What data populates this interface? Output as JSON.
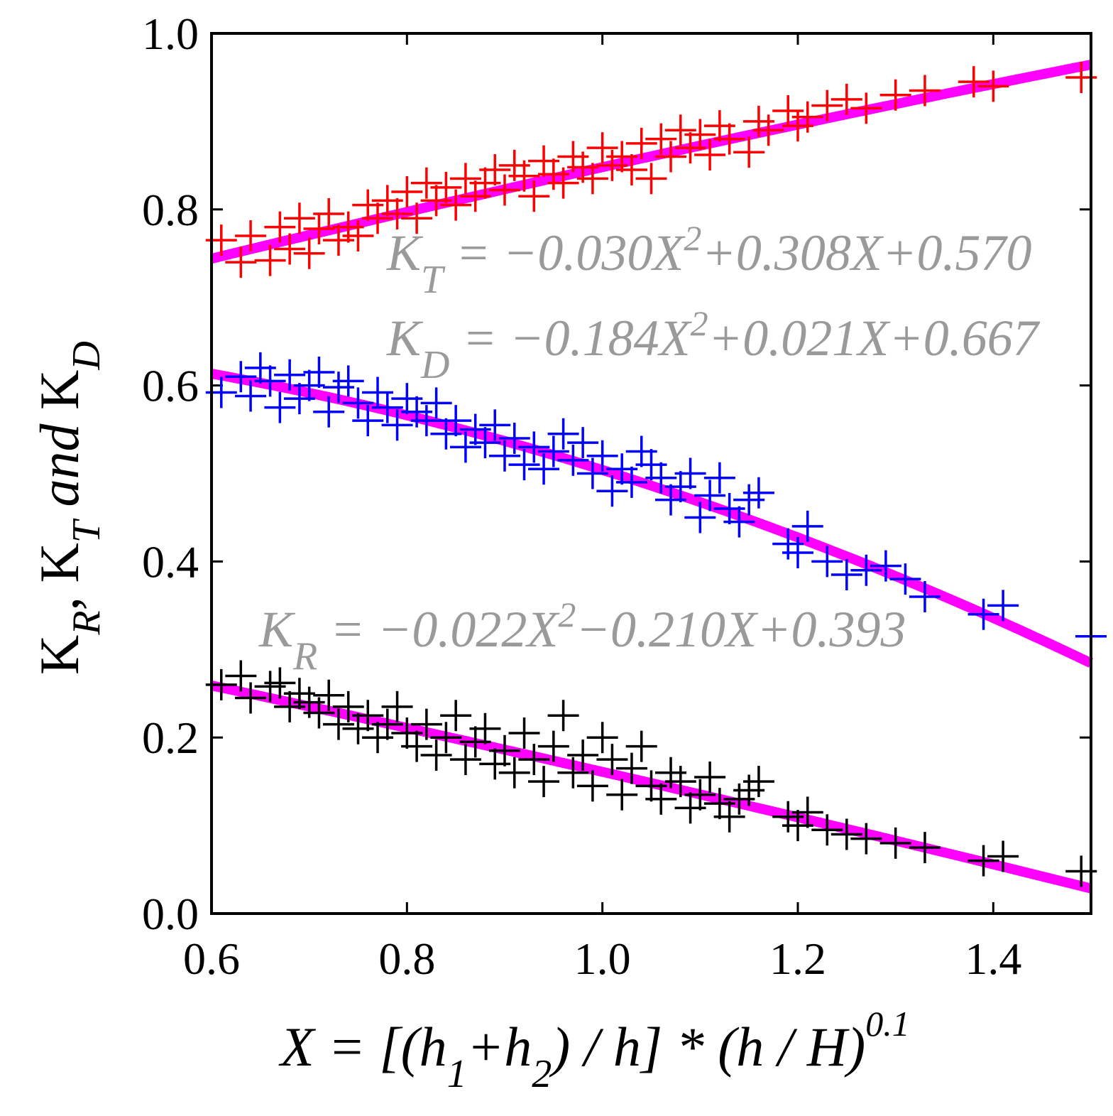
{
  "chart_data": {
    "type": "scatter",
    "title": "",
    "xlim": [
      0.6,
      1.5
    ],
    "ylim": [
      0.0,
      1.0
    ],
    "x_ticks": [
      "0.6",
      "0.8",
      "1.0",
      "1.2",
      "1.4"
    ],
    "y_ticks": [
      "0.0",
      "0.2",
      "0.4",
      "0.6",
      "0.8",
      "1.0"
    ],
    "xlabel": {
      "lhs": "X = [(h",
      "sub1": "1",
      "mid1": "+h",
      "sub2": "2",
      "mid2": ") / h] * (h / H)",
      "sup": "0.1"
    },
    "ylabel": {
      "k1": "K",
      "s1": "R",
      "sep1": ", K",
      "s2": "T",
      "and": " and ",
      "k3": "K",
      "s3": "D"
    },
    "equations": [
      {
        "k": "K",
        "sub": "T",
        "p1": " = −0.030X",
        "sup": "2",
        "p2": "+0.308X+0.570"
      },
      {
        "k": "K",
        "sub": "D",
        "p1": " = −0.184X",
        "sup": "2",
        "p2": "+0.021X+0.667"
      },
      {
        "k": "K",
        "sub": "R",
        "p1": " = −0.022X",
        "sup": "2",
        "p2": "−0.210X+0.393"
      }
    ],
    "fit_color": "#ff00ff",
    "series": [
      {
        "name": "K_T",
        "color": "#ff0000",
        "coef": [
          -0.03,
          0.308,
          0.57
        ],
        "x": [
          0.61,
          0.63,
          0.64,
          0.66,
          0.67,
          0.68,
          0.69,
          0.7,
          0.71,
          0.72,
          0.73,
          0.74,
          0.75,
          0.76,
          0.77,
          0.78,
          0.79,
          0.8,
          0.81,
          0.82,
          0.83,
          0.84,
          0.85,
          0.86,
          0.87,
          0.88,
          0.89,
          0.9,
          0.91,
          0.92,
          0.93,
          0.94,
          0.95,
          0.96,
          0.97,
          0.98,
          0.99,
          1.0,
          1.01,
          1.02,
          1.03,
          1.04,
          1.05,
          1.06,
          1.07,
          1.08,
          1.09,
          1.1,
          1.11,
          1.12,
          1.13,
          1.15,
          1.16,
          1.17,
          1.19,
          1.2,
          1.21,
          1.23,
          1.25,
          1.27,
          1.3,
          1.33,
          1.38,
          1.4,
          1.49
        ],
        "y": [
          0.765,
          0.74,
          0.77,
          0.742,
          0.78,
          0.755,
          0.79,
          0.75,
          0.778,
          0.795,
          0.765,
          0.78,
          0.77,
          0.805,
          0.79,
          0.81,
          0.795,
          0.82,
          0.79,
          0.83,
          0.81,
          0.825,
          0.805,
          0.835,
          0.815,
          0.83,
          0.845,
          0.822,
          0.85,
          0.838,
          0.815,
          0.855,
          0.84,
          0.83,
          0.86,
          0.848,
          0.835,
          0.87,
          0.85,
          0.86,
          0.845,
          0.875,
          0.835,
          0.88,
          0.86,
          0.89,
          0.87,
          0.885,
          0.862,
          0.895,
          0.88,
          0.865,
          0.9,
          0.89,
          0.912,
          0.895,
          0.905,
          0.918,
          0.925,
          0.915,
          0.93,
          0.935,
          0.945,
          0.94,
          0.95
        ]
      },
      {
        "name": "K_D",
        "color": "#0000ff",
        "coef": [
          -0.184,
          0.021,
          0.667
        ],
        "x": [
          0.61,
          0.63,
          0.64,
          0.65,
          0.66,
          0.67,
          0.68,
          0.69,
          0.7,
          0.71,
          0.72,
          0.73,
          0.74,
          0.75,
          0.76,
          0.77,
          0.78,
          0.79,
          0.8,
          0.81,
          0.82,
          0.83,
          0.84,
          0.85,
          0.86,
          0.87,
          0.88,
          0.89,
          0.9,
          0.91,
          0.92,
          0.93,
          0.94,
          0.95,
          0.96,
          0.97,
          0.98,
          0.99,
          1.0,
          1.01,
          1.02,
          1.03,
          1.04,
          1.05,
          1.06,
          1.07,
          1.08,
          1.09,
          1.1,
          1.11,
          1.12,
          1.13,
          1.14,
          1.15,
          1.16,
          1.19,
          1.2,
          1.21,
          1.23,
          1.25,
          1.27,
          1.29,
          1.31,
          1.33,
          1.39,
          1.41,
          1.5
        ],
        "y": [
          0.592,
          0.61,
          0.588,
          0.62,
          0.605,
          0.575,
          0.612,
          0.585,
          0.6,
          0.615,
          0.57,
          0.598,
          0.605,
          0.58,
          0.56,
          0.592,
          0.575,
          0.555,
          0.585,
          0.57,
          0.56,
          0.58,
          0.545,
          0.56,
          0.53,
          0.55,
          0.535,
          0.555,
          0.52,
          0.54,
          0.51,
          0.53,
          0.505,
          0.525,
          0.545,
          0.515,
          0.535,
          0.5,
          0.52,
          0.48,
          0.505,
          0.49,
          0.525,
          0.51,
          0.495,
          0.47,
          0.485,
          0.5,
          0.45,
          0.475,
          0.495,
          0.46,
          0.445,
          0.47,
          0.478,
          0.42,
          0.41,
          0.44,
          0.4,
          0.385,
          0.39,
          0.395,
          0.38,
          0.36,
          0.34,
          0.35,
          0.315
        ]
      },
      {
        "name": "K_R",
        "color": "#000000",
        "coef": [
          -0.022,
          -0.21,
          0.393
        ],
        "x": [
          0.61,
          0.63,
          0.64,
          0.66,
          0.67,
          0.68,
          0.69,
          0.7,
          0.71,
          0.72,
          0.73,
          0.74,
          0.75,
          0.76,
          0.77,
          0.78,
          0.79,
          0.8,
          0.81,
          0.82,
          0.83,
          0.84,
          0.85,
          0.86,
          0.87,
          0.88,
          0.89,
          0.9,
          0.91,
          0.92,
          0.93,
          0.94,
          0.95,
          0.96,
          0.97,
          0.98,
          0.99,
          1.0,
          1.01,
          1.02,
          1.03,
          1.04,
          1.05,
          1.06,
          1.07,
          1.08,
          1.09,
          1.1,
          1.11,
          1.12,
          1.13,
          1.14,
          1.15,
          1.16,
          1.19,
          1.2,
          1.21,
          1.23,
          1.25,
          1.27,
          1.3,
          1.33,
          1.39,
          1.41,
          1.49
        ],
        "y": [
          0.26,
          0.27,
          0.245,
          0.258,
          0.262,
          0.235,
          0.25,
          0.24,
          0.228,
          0.248,
          0.215,
          0.235,
          0.21,
          0.225,
          0.2,
          0.215,
          0.235,
          0.205,
          0.19,
          0.215,
          0.18,
          0.2,
          0.225,
          0.175,
          0.195,
          0.21,
          0.17,
          0.185,
          0.16,
          0.205,
          0.175,
          0.15,
          0.19,
          0.225,
          0.16,
          0.18,
          0.145,
          0.2,
          0.175,
          0.135,
          0.165,
          0.19,
          0.145,
          0.13,
          0.16,
          0.15,
          0.12,
          0.135,
          0.155,
          0.125,
          0.11,
          0.13,
          0.14,
          0.15,
          0.11,
          0.1,
          0.115,
          0.095,
          0.09,
          0.085,
          0.08,
          0.075,
          0.06,
          0.065,
          0.048
        ]
      }
    ]
  }
}
